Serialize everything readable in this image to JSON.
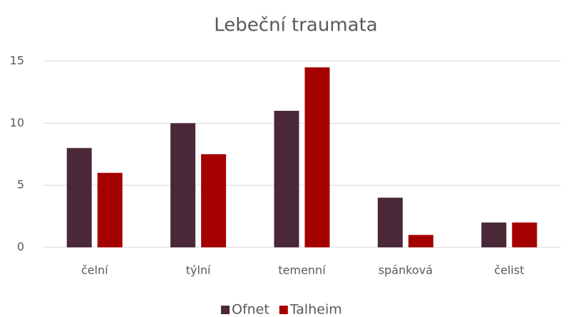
{
  "chart_data": {
    "type": "bar",
    "title": "Lebeční traumata",
    "categories": [
      "čelní",
      "týlní",
      "temenní",
      "spánková",
      "čelist"
    ],
    "series": [
      {
        "name": "Ofnet",
        "color": "#4a2838",
        "values": [
          8,
          10,
          11,
          4,
          2
        ]
      },
      {
        "name": "Talheim",
        "color": "#a50000",
        "values": [
          6,
          7.5,
          14.5,
          1,
          2
        ]
      }
    ],
    "ylim": [
      0,
      15
    ],
    "yticks": [
      0,
      5,
      10,
      15
    ],
    "grid": true,
    "legend": "bottom"
  }
}
